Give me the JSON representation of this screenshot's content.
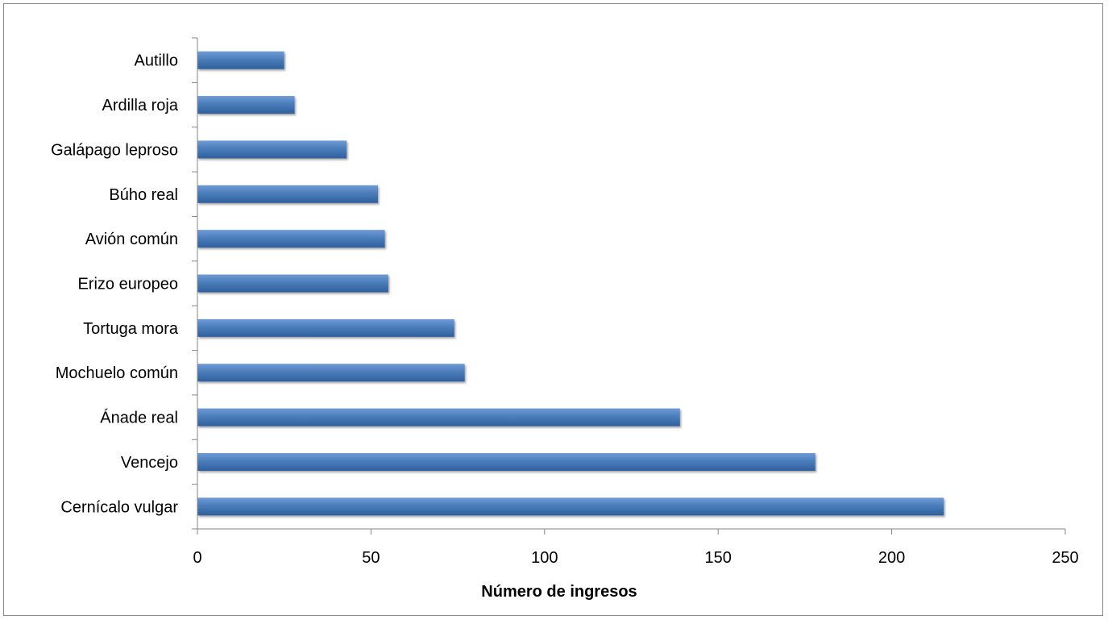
{
  "chart_data": {
    "type": "bar",
    "orientation": "horizontal",
    "categories": [
      "Cernícalo vulgar",
      "Vencejo",
      "Ánade real",
      "Mochuelo común",
      "Tortuga mora",
      "Erizo europeo",
      "Avión común",
      "Búho real",
      "Galápago leproso",
      "Ardilla roja",
      "Autillo"
    ],
    "values": [
      215,
      178,
      139,
      77,
      74,
      55,
      54,
      52,
      43,
      28,
      25
    ],
    "title": "",
    "xlabel": "Número de ingresos",
    "ylabel": "",
    "xlim": [
      0,
      250
    ],
    "xticks": [
      "0",
      "50",
      "100",
      "150",
      "200",
      "250"
    ],
    "grid": false,
    "legend": "none",
    "bar_color": "#4a7ebb",
    "bar_color_light": "#6f9bd6",
    "bar_color_dark": "#2f5f9e"
  }
}
